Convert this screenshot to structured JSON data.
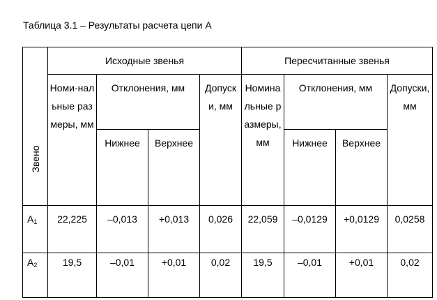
{
  "caption": "Таблица 3.1 – Результаты расчета цепи А",
  "header": {
    "zveno": "Звено",
    "group_original": "Исходные звенья",
    "group_recalc": "Пересчитанные звенья",
    "nominal_original": "Номи-нальные размеры, мм",
    "deviations_original": "Отклонения, мм",
    "tolerance_original": "Допуски, мм",
    "nominal_recalc": "Номинальные размеры, мм",
    "deviations_recalc": "Отклонения, мм",
    "tolerance_recalc": "Допуски, мм",
    "lower_original": "Нижнее",
    "upper_original": "Верхнее",
    "lower_recalc": "Нижнее",
    "upper_recalc": "Верхнее"
  },
  "rows": [
    {
      "link_letter": "A",
      "link_index": "1",
      "nominal_original": "22,225",
      "lower_original": "–0,013",
      "upper_original": "+0,013",
      "tolerance_original": "0,026",
      "nominal_recalc": "22,059",
      "lower_recalc": "–0,0129",
      "upper_recalc": "+0,0129",
      "tolerance_recalc": "0,0258"
    },
    {
      "link_letter": "A",
      "link_index": "2",
      "nominal_original": "19,5",
      "lower_original": "–0,01",
      "upper_original": "+0,01",
      "tolerance_original": "0,02",
      "nominal_recalc": "19,5",
      "lower_recalc": "–0,01",
      "upper_recalc": "+0,01",
      "tolerance_recalc": "0,02"
    }
  ]
}
